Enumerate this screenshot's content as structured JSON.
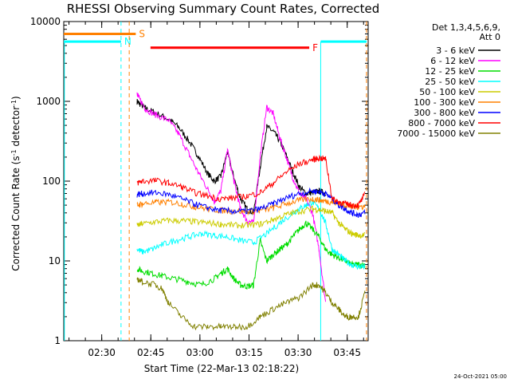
{
  "chart_data": {
    "type": "line",
    "title": "RHESSI Observing Summary Count Rates, Corrected",
    "xlabel": "Start Time (22-Mar-13 02:18:22)",
    "ylabel_main": "Corrected Count Rate (s",
    "ylabel_sup1": "-1",
    "ylabel_mid": " detector",
    "ylabel_sup2": "-1",
    "ylabel_end": ")",
    "yscale": "log",
    "ylim": [
      1,
      10000
    ],
    "xlim_minutes": [
      0,
      93
    ],
    "x_ticks": [
      {
        "label": "02:30",
        "minute": 11.6
      },
      {
        "label": "02:45",
        "minute": 26.6
      },
      {
        "label": "03:00",
        "minute": 41.6
      },
      {
        "label": "03:15",
        "minute": 56.6
      },
      {
        "label": "03:30",
        "minute": 71.6
      },
      {
        "label": "03:45",
        "minute": 86.6
      }
    ],
    "y_ticks": [
      {
        "label": "1",
        "value": 1
      },
      {
        "label": "10",
        "value": 10
      },
      {
        "label": "100",
        "value": 100
      },
      {
        "label": "1000",
        "value": 1000
      },
      {
        "label": "10000",
        "value": 10000
      }
    ],
    "legend_title_1": "Det 1,3,4,5,6,9,",
    "legend_title_2": "Att 0",
    "series": [
      {
        "name": "3 - 6 keV",
        "color": "#000000",
        "x": [
          0,
          20,
          22.4,
          23,
          25,
          28,
          32,
          35,
          38,
          41,
          44,
          46,
          48,
          50,
          52,
          54,
          56,
          58,
          60,
          62,
          64,
          66,
          68,
          70,
          72,
          74,
          76,
          78,
          80,
          82,
          84,
          86,
          88,
          90,
          92
        ],
        "y": [
          null,
          null,
          1000,
          950,
          820,
          720,
          600,
          480,
          330,
          210,
          125,
          100,
          115,
          230,
          110,
          60,
          45,
          40,
          150,
          480,
          420,
          320,
          210,
          130,
          85,
          70,
          72,
          75,
          70,
          null,
          null,
          null,
          null,
          null,
          null
        ]
      },
      {
        "name": "6 - 12 keV",
        "color": "#ff00ff",
        "x": [
          0,
          20,
          22.4,
          23,
          25,
          28,
          32,
          35,
          38,
          41,
          44,
          46,
          48,
          50,
          52,
          54,
          56,
          58,
          60,
          62,
          64,
          66,
          68,
          70,
          72,
          74,
          76,
          78,
          80,
          82,
          84,
          86,
          88,
          90,
          92
        ],
        "y": [
          null,
          null,
          1300,
          1100,
          800,
          680,
          580,
          400,
          230,
          130,
          80,
          55,
          75,
          250,
          100,
          45,
          32,
          30,
          200,
          850,
          700,
          350,
          200,
          110,
          70,
          60,
          40,
          14,
          3,
          null,
          null,
          null,
          null,
          null,
          null
        ]
      },
      {
        "name": "12 - 25 keV",
        "color": "#00dd00",
        "x": [
          0,
          20,
          22.4,
          24,
          27,
          30,
          34,
          38,
          42,
          46,
          48,
          50,
          52,
          54,
          56,
          58,
          60,
          62,
          64,
          66,
          68,
          70,
          72,
          74,
          76,
          78,
          80,
          82,
          84,
          86,
          88,
          90,
          92
        ],
        "y": [
          null,
          null,
          8,
          7.5,
          7,
          6.5,
          6,
          5.5,
          5,
          6,
          7,
          8,
          6,
          5,
          4.8,
          5,
          18,
          10,
          12,
          14,
          16,
          20,
          25,
          30,
          25,
          20,
          14,
          12,
          11,
          10,
          9,
          9,
          9
        ]
      },
      {
        "name": "25 - 50 keV",
        "color": "#00ffff",
        "x": [
          0,
          20,
          22.4,
          24,
          27,
          30,
          34,
          38,
          42,
          46,
          50,
          54,
          58,
          62,
          66,
          70,
          72,
          74,
          76,
          78,
          80,
          82,
          84,
          86,
          88,
          90,
          92
        ],
        "y": [
          null,
          null,
          14,
          13,
          14,
          16,
          18,
          20,
          22,
          21,
          20,
          18,
          17,
          22,
          30,
          40,
          45,
          50,
          55,
          45,
          30,
          14,
          12,
          10,
          9,
          8.5,
          8.5
        ]
      },
      {
        "name": "50 - 100 keV",
        "color": "#cccc00",
        "x": [
          0,
          20,
          22.4,
          24,
          28,
          32,
          36,
          40,
          44,
          48,
          52,
          56,
          60,
          64,
          68,
          72,
          76,
          78,
          80,
          82,
          84,
          86,
          88,
          90,
          92
        ],
        "y": [
          null,
          null,
          28,
          29,
          31,
          32,
          32,
          31,
          30,
          29,
          28,
          28,
          29,
          33,
          38,
          42,
          45,
          44,
          42,
          40,
          30,
          25,
          22,
          21,
          21
        ]
      },
      {
        "name": "100 - 300 keV",
        "color": "#ff8000",
        "x": [
          0,
          20,
          22.4,
          24,
          28,
          32,
          36,
          40,
          44,
          48,
          52,
          56,
          60,
          64,
          68,
          72,
          76,
          78,
          80,
          82,
          84,
          86,
          88,
          90,
          92
        ],
        "y": [
          null,
          null,
          50,
          52,
          54,
          55,
          52,
          48,
          45,
          43,
          42,
          42,
          43,
          46,
          52,
          58,
          60,
          58,
          56,
          55,
          52,
          50,
          48,
          48,
          48
        ]
      },
      {
        "name": "300 - 800 keV",
        "color": "#0000ff",
        "x": [
          0,
          20,
          22.4,
          24,
          28,
          32,
          36,
          40,
          44,
          48,
          52,
          56,
          60,
          64,
          68,
          72,
          76,
          78,
          80,
          82,
          84,
          86,
          88,
          90,
          92
        ],
        "y": [
          null,
          null,
          68,
          70,
          72,
          68,
          60,
          52,
          46,
          43,
          42,
          42,
          45,
          52,
          62,
          70,
          75,
          74,
          70,
          60,
          50,
          45,
          40,
          38,
          40
        ]
      },
      {
        "name": "800 - 7000 keV",
        "color": "#ff0000",
        "x": [
          0,
          20,
          22.4,
          24,
          28,
          32,
          36,
          40,
          44,
          48,
          52,
          56,
          60,
          64,
          68,
          72,
          76,
          78,
          80,
          82,
          84,
          86,
          88,
          90,
          92
        ],
        "y": [
          null,
          null,
          95,
          100,
          102,
          95,
          85,
          72,
          65,
          60,
          62,
          65,
          72,
          95,
          130,
          165,
          185,
          195,
          190,
          60,
          55,
          52,
          50,
          50,
          68
        ]
      },
      {
        "name": "7000 - 15000 keV",
        "color": "#808000",
        "x": [
          0,
          20,
          22.4,
          24,
          28,
          30,
          32,
          36,
          40,
          44,
          48,
          52,
          56,
          60,
          64,
          68,
          72,
          76,
          78,
          80,
          82,
          84,
          86,
          88,
          90,
          92
        ],
        "y": [
          null,
          null,
          6,
          5.5,
          5,
          4.5,
          3,
          2,
          1.5,
          1.5,
          1.5,
          1.5,
          1.5,
          2,
          2.5,
          3,
          3.5,
          5,
          5,
          4,
          3,
          2.5,
          2,
          2,
          2,
          4
        ]
      }
    ],
    "state_bars": [
      {
        "label": "S",
        "color": "#ff8000",
        "x_start": 0,
        "x_end": 22,
        "value": 7000
      },
      {
        "label": "N",
        "color": "#00ffff",
        "x_start": 0,
        "x_end": 17.5,
        "value": 5600
      },
      {
        "label": "N",
        "color": "#00ffff",
        "x_start": 78.5,
        "x_end": 92.5,
        "value": 5600
      },
      {
        "label": "F",
        "color": "#ff0000",
        "x_start": 26.5,
        "x_end": 75,
        "value": 4700
      }
    ],
    "footer": "24-Oct-2021 05:00"
  }
}
